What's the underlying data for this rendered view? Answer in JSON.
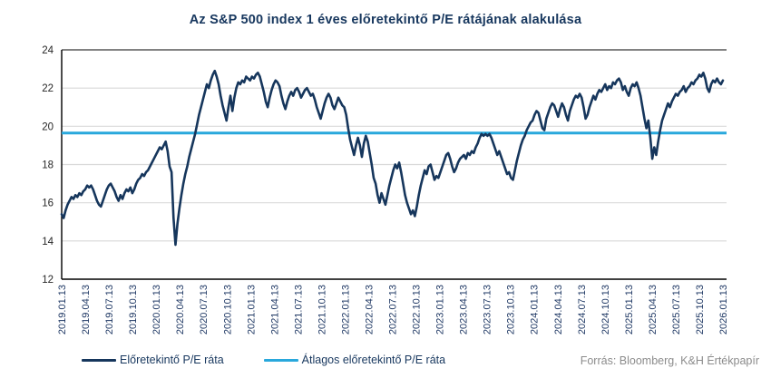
{
  "header": {
    "title": "Az S&P 500 index 1 éves előretekintő P/E rátájának alakulása"
  },
  "legend": {
    "items": [
      {
        "label": "Előretekintő P/E ráta",
        "color": "#16365C"
      },
      {
        "label": "Átlagos előretekintő P/E ráta",
        "color": "#29A8DC"
      }
    ]
  },
  "footer": {
    "source": "Forrás: Bloomberg, K&H Értékpapír"
  },
  "colors": {
    "title": "#17375E",
    "grid": "#D9D9D9",
    "plot_top_border": "#595959",
    "axis": "#000000",
    "x_tick_label": "#1F3864",
    "y_tick_label": "#262626",
    "legend_text": "#17375E",
    "source_text": "#8C8C8C"
  },
  "chart_data": {
    "type": "line",
    "title": "Az S&P 500 index 1 éves előretekintő P/E rátájának alakulása",
    "xlabel": "",
    "ylabel": "",
    "ylim": [
      12,
      24
    ],
    "y_ticks": [
      12,
      14,
      16,
      18,
      20,
      22,
      24
    ],
    "grid": true,
    "legend_position": "bottom",
    "x_tick_labels": [
      "2019.01.13",
      "2019.04.13",
      "2019.07.13",
      "2019.10.13",
      "2020.01.13",
      "2020.04.13",
      "2020.07.13",
      "2020.10.13",
      "2021.01.13",
      "2021.04.13",
      "2021.07.13",
      "2021.10.13",
      "2022.01.13",
      "2022.04.13",
      "2022.07.13",
      "2022.10.13",
      "2023.01.13",
      "2023.04.13",
      "2023.07.13",
      "2023.10.13",
      "2024.01.13",
      "2024.04.13",
      "2024.07.13",
      "2024.10.13",
      "2025.01.13",
      "2025.04.13",
      "2025.07.13",
      "2025.10.13",
      "2026.01.13"
    ],
    "series": [
      {
        "name": "Előretekintő P/E ráta",
        "color": "#16365C",
        "sampling": "weekly",
        "start": "2019.01.13",
        "end": "2026.01.13",
        "values": [
          15.4,
          15.2,
          15.6,
          15.9,
          16.1,
          16.3,
          16.2,
          16.4,
          16.3,
          16.5,
          16.4,
          16.6,
          16.7,
          16.9,
          16.8,
          16.9,
          16.7,
          16.4,
          16.1,
          15.9,
          15.8,
          16.1,
          16.4,
          16.7,
          16.9,
          17.0,
          16.8,
          16.6,
          16.3,
          16.1,
          16.4,
          16.2,
          16.5,
          16.7,
          16.6,
          16.8,
          16.5,
          16.7,
          17.0,
          17.2,
          17.3,
          17.5,
          17.4,
          17.6,
          17.7,
          17.9,
          18.1,
          18.3,
          18.5,
          18.7,
          18.9,
          18.8,
          19.0,
          19.2,
          18.7,
          17.9,
          17.6,
          15.2,
          13.8,
          14.9,
          15.7,
          16.4,
          17.0,
          17.5,
          17.9,
          18.4,
          18.8,
          19.2,
          19.6,
          20.1,
          20.6,
          21.0,
          21.4,
          21.8,
          22.2,
          22.0,
          22.4,
          22.7,
          22.9,
          22.6,
          22.2,
          21.6,
          21.1,
          20.7,
          20.3,
          21.0,
          21.6,
          20.8,
          21.5,
          22.0,
          22.3,
          22.2,
          22.4,
          22.3,
          22.6,
          22.5,
          22.4,
          22.6,
          22.5,
          22.7,
          22.8,
          22.6,
          22.2,
          21.8,
          21.3,
          21.0,
          21.5,
          21.9,
          22.2,
          22.4,
          22.3,
          22.1,
          21.6,
          21.2,
          20.9,
          21.3,
          21.6,
          21.8,
          21.6,
          21.9,
          22.0,
          21.8,
          21.5,
          21.7,
          21.9,
          22.0,
          21.8,
          21.6,
          21.7,
          21.4,
          21.0,
          20.7,
          20.4,
          20.8,
          21.2,
          21.5,
          21.7,
          21.5,
          21.1,
          20.9,
          21.2,
          21.5,
          21.3,
          21.1,
          21.0,
          20.6,
          19.9,
          19.3,
          18.9,
          18.5,
          19.0,
          19.4,
          19.0,
          18.4,
          19.1,
          19.5,
          19.2,
          18.6,
          18.0,
          17.3,
          17.0,
          16.4,
          16.0,
          16.5,
          16.2,
          15.9,
          16.4,
          16.9,
          17.3,
          17.7,
          18.0,
          17.8,
          18.1,
          17.6,
          17.0,
          16.4,
          16.0,
          15.7,
          15.4,
          15.6,
          15.3,
          15.8,
          16.4,
          16.9,
          17.3,
          17.7,
          17.5,
          17.9,
          18.0,
          17.6,
          17.2,
          17.4,
          17.3,
          17.6,
          17.9,
          18.2,
          18.5,
          18.6,
          18.3,
          17.9,
          17.6,
          17.8,
          18.1,
          18.3,
          18.4,
          18.5,
          18.3,
          18.6,
          18.5,
          18.7,
          18.6,
          18.9,
          19.1,
          19.4,
          19.6,
          19.5,
          19.6,
          19.5,
          19.6,
          19.4,
          19.1,
          18.8,
          18.5,
          18.7,
          18.4,
          18.1,
          17.8,
          17.5,
          17.6,
          17.3,
          17.2,
          17.7,
          18.2,
          18.6,
          19.0,
          19.3,
          19.5,
          19.8,
          20.0,
          20.2,
          20.3,
          20.6,
          20.8,
          20.7,
          20.3,
          19.9,
          19.8,
          20.4,
          20.7,
          21.0,
          21.2,
          21.1,
          20.8,
          20.5,
          20.9,
          21.2,
          21.0,
          20.6,
          20.3,
          20.8,
          21.1,
          21.4,
          21.6,
          21.5,
          21.7,
          21.5,
          21.0,
          20.4,
          20.6,
          21.0,
          21.3,
          21.6,
          21.4,
          21.7,
          21.9,
          21.8,
          22.0,
          22.2,
          21.9,
          22.1,
          22.0,
          22.3,
          22.2,
          22.4,
          22.5,
          22.3,
          21.9,
          22.1,
          21.8,
          21.6,
          22.0,
          22.2,
          22.1,
          22.3,
          22.0,
          21.6,
          21.0,
          20.4,
          19.9,
          20.3,
          19.4,
          18.3,
          18.9,
          18.5,
          19.2,
          19.8,
          20.3,
          20.6,
          20.9,
          21.2,
          21.0,
          21.3,
          21.5,
          21.7,
          21.6,
          21.8,
          21.9,
          22.1,
          21.8,
          22.0,
          22.1,
          22.3,
          22.2,
          22.4,
          22.5,
          22.7,
          22.6,
          22.8,
          22.5,
          22.0,
          21.8,
          22.2,
          22.4,
          22.3,
          22.5,
          22.3,
          22.2,
          22.4
        ]
      },
      {
        "name": "Átlagos előretekintő P/E ráta",
        "color": "#29A8DC",
        "type": "constant-line",
        "value": 19.65
      }
    ]
  }
}
